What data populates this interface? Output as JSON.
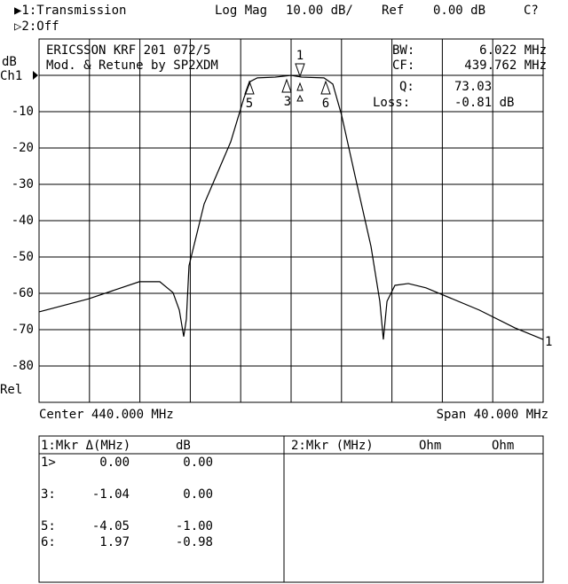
{
  "header": {
    "channel1": "▶1:Transmission",
    "format": "Log Mag",
    "scale": "10.00 dB/",
    "ref": "Ref",
    "ref_value": "0.00 dB",
    "status": "C?",
    "channel2": "▷2:Off"
  },
  "chart_data": {
    "type": "line",
    "title": "ERICSSON KRF 201 072/5",
    "subtitle": "Mod. & Retune by SP2XDM",
    "y_label": "dB",
    "channel_label": "Ch1",
    "rel_label": "Rel",
    "center_label": "Center 440.000 MHz",
    "span_label": "Span 40.000 MHz",
    "trace_label": "1",
    "stats": [
      {
        "label": "BW:",
        "value": "6.022 MHz"
      },
      {
        "label": "CF:",
        "value": "439.762 MHz"
      },
      {
        "label": "Q:",
        "value": "73.03"
      },
      {
        "label": "Loss:",
        "value": "-0.81 dB"
      }
    ],
    "markers": [
      {
        "label": "1"
      },
      {
        "label": "3"
      },
      {
        "label": "5"
      },
      {
        "label": "6"
      }
    ],
    "xlim": [
      420,
      460
    ],
    "ylim": [
      -90,
      10
    ],
    "yticks": [
      -10,
      -20,
      -30,
      -40,
      -50,
      -60,
      -70,
      -80
    ],
    "grid": true,
    "color": "#000000",
    "x": [
      420.0,
      423.94,
      427.96,
      429.58,
      430.63,
      431.13,
      431.48,
      431.69,
      431.9,
      433.1,
      435.21,
      436.27,
      436.76,
      437.32,
      438.73,
      440.0,
      440.85,
      442.61,
      443.31,
      444.01,
      445.07,
      446.34,
      447.04,
      447.32,
      447.61,
      448.24,
      449.3,
      450.7,
      454.93,
      457.75,
      460.0
    ],
    "series": [
      {
        "name": "Transmission",
        "values": [
          -65.1,
          -61.5,
          -56.8,
          -56.8,
          -59.8,
          -64.6,
          -71.9,
          -67.1,
          -52.4,
          -35.4,
          -18.3,
          -6.1,
          -1.7,
          -0.7,
          -0.5,
          0.0,
          -0.5,
          -0.7,
          -2.4,
          -11.0,
          -27.6,
          -47.1,
          -62.2,
          -72.7,
          -62.2,
          -57.8,
          -57.3,
          -58.5,
          -64.6,
          -69.5,
          -72.7
        ]
      }
    ]
  },
  "marker_table": {
    "left_header": [
      "1:Mkr Δ(MHz)",
      "dB"
    ],
    "rows": [
      [
        "1>",
        "0.00",
        "0.00"
      ],
      [
        "3:",
        "-1.04",
        "0.00"
      ],
      [
        "5:",
        "-4.05",
        "-1.00"
      ],
      [
        "6:",
        "1.97",
        "-0.98"
      ]
    ],
    "right_header": [
      "2:Mkr (MHz)",
      "Ohm",
      "Ohm"
    ]
  }
}
